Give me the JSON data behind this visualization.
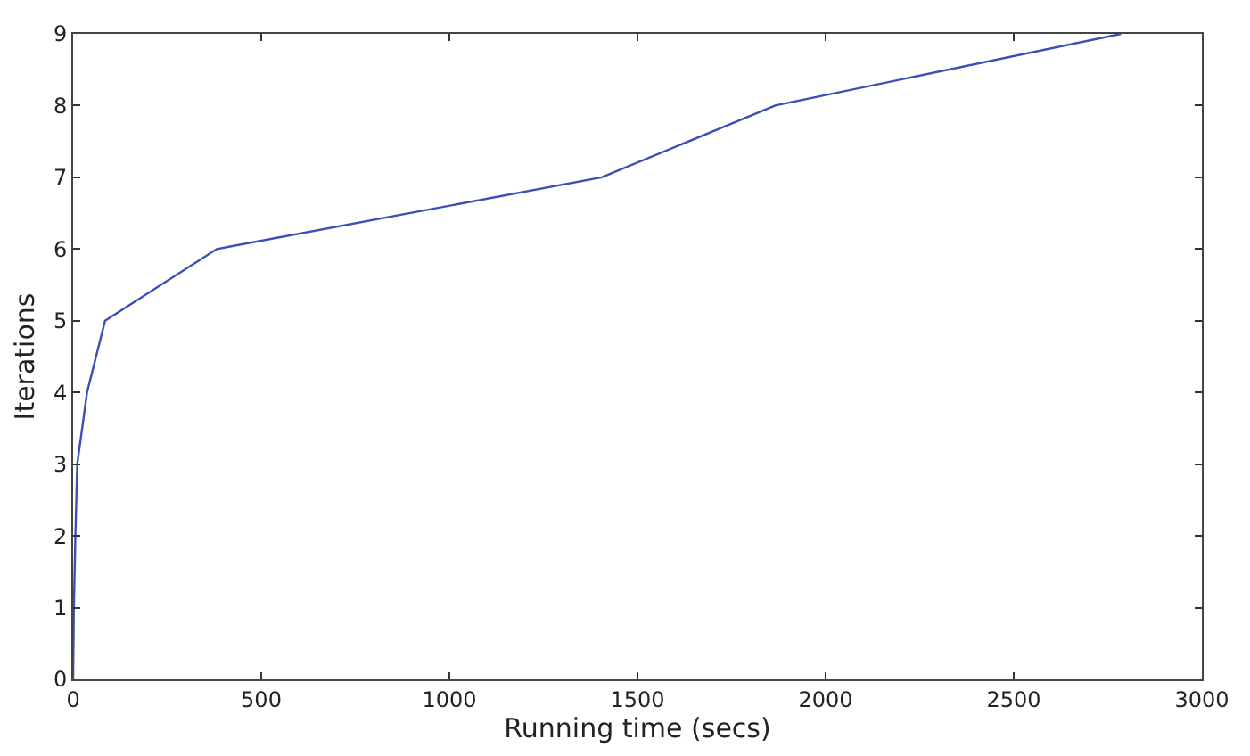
{
  "chart_data": {
    "type": "line",
    "xlabel": "Running time (secs)",
    "ylabel": "Iterations",
    "x": [
      0,
      2,
      6,
      11,
      37,
      85,
      382,
      1405,
      1866,
      2785
    ],
    "series": [
      {
        "color": "#3a4fb5",
        "values": [
          0,
          1,
          2,
          3,
          4,
          5,
          6,
          7,
          8,
          9
        ]
      }
    ],
    "xlim": [
      0,
      3000
    ],
    "xticks": [
      0,
      500,
      1000,
      1500,
      2000,
      2500,
      3000
    ],
    "ylim": [
      0,
      9
    ],
    "yticks": [
      0,
      1,
      2,
      3,
      4,
      5,
      6,
      7,
      8,
      9
    ],
    "marker": "none",
    "line_style": "solid"
  }
}
